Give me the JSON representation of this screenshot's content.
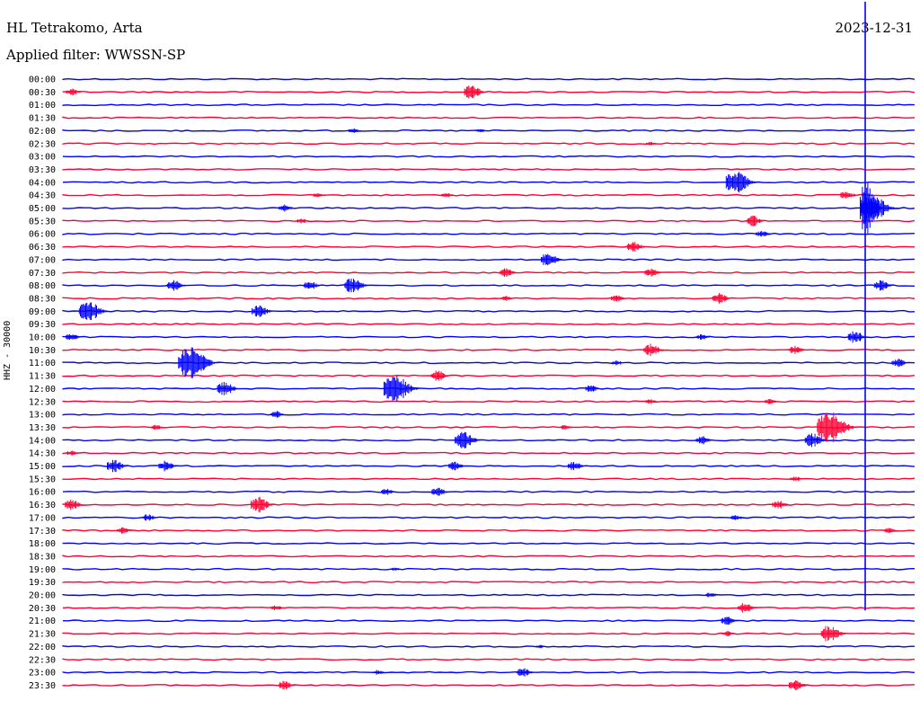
{
  "header": {
    "station": "HL Tetrakomo, Arta",
    "filter": "Applied filter: WWSSN-SP",
    "date": "2023-12-31",
    "channel": "HHZ - 30000"
  },
  "colors": {
    "trace_a": "#0000ff",
    "trace_b": "#ff0033"
  },
  "chart_data": {
    "type": "line",
    "title": "HL Tetrakomo, Arta",
    "subtitle": "Applied filter: WWSSN-SP",
    "ylabel": "HHZ - 30000",
    "tick_labels": [
      "00:00",
      "00:30",
      "01:00",
      "01:30",
      "02:00",
      "02:30",
      "03:00",
      "03:30",
      "04:00",
      "04:30",
      "05:00",
      "05:30",
      "06:00",
      "06:30",
      "07:00",
      "07:30",
      "08:00",
      "08:30",
      "09:00",
      "09:30",
      "10:00",
      "10:30",
      "11:00",
      "11:30",
      "12:00",
      "12:30",
      "13:00",
      "13:30",
      "14:00",
      "14:30",
      "15:00",
      "15:30",
      "16:00",
      "16:30",
      "17:00",
      "17:30",
      "18:00",
      "18:30",
      "19:00",
      "19:30",
      "20:00",
      "20:30",
      "21:00",
      "21:30",
      "22:00",
      "22:30",
      "23:00",
      "23:30"
    ],
    "line_colors": [
      "#0000ff",
      "#ff0033"
    ],
    "events": [
      {
        "row": 1,
        "pos": 0.01,
        "amp": 4
      },
      {
        "row": 1,
        "pos": 0.48,
        "amp": 8
      },
      {
        "row": 4,
        "pos": 0.34,
        "amp": 3
      },
      {
        "row": 4,
        "pos": 0.49,
        "amp": 2
      },
      {
        "row": 5,
        "pos": 0.69,
        "amp": 2
      },
      {
        "row": 8,
        "pos": 0.79,
        "amp": 13
      },
      {
        "row": 9,
        "pos": 0.3,
        "amp": 3
      },
      {
        "row": 9,
        "pos": 0.45,
        "amp": 3
      },
      {
        "row": 9,
        "pos": 0.92,
        "amp": 5
      },
      {
        "row": 10,
        "pos": 0.26,
        "amp": 4
      },
      {
        "row": 10,
        "pos": 0.95,
        "amp": 16
      },
      {
        "row": 11,
        "pos": 0.28,
        "amp": 3
      },
      {
        "row": 11,
        "pos": 0.81,
        "amp": 6
      },
      {
        "row": 12,
        "pos": 0.82,
        "amp": 4
      },
      {
        "row": 13,
        "pos": 0.67,
        "amp": 6
      },
      {
        "row": 14,
        "pos": 0.57,
        "amp": 8
      },
      {
        "row": 15,
        "pos": 0.52,
        "amp": 5
      },
      {
        "row": 15,
        "pos": 0.69,
        "amp": 5
      },
      {
        "row": 16,
        "pos": 0.13,
        "amp": 6
      },
      {
        "row": 16,
        "pos": 0.29,
        "amp": 5
      },
      {
        "row": 16,
        "pos": 0.34,
        "amp": 9
      },
      {
        "row": 16,
        "pos": 0.96,
        "amp": 6
      },
      {
        "row": 17,
        "pos": 0.52,
        "amp": 3
      },
      {
        "row": 17,
        "pos": 0.65,
        "amp": 4
      },
      {
        "row": 17,
        "pos": 0.77,
        "amp": 6
      },
      {
        "row": 18,
        "pos": 0.03,
        "amp": 12
      },
      {
        "row": 18,
        "pos": 0.23,
        "amp": 7
      },
      {
        "row": 20,
        "pos": 0.01,
        "amp": 4
      },
      {
        "row": 20,
        "pos": 0.75,
        "amp": 3
      },
      {
        "row": 20,
        "pos": 0.93,
        "amp": 7
      },
      {
        "row": 21,
        "pos": 0.69,
        "amp": 7
      },
      {
        "row": 21,
        "pos": 0.86,
        "amp": 5
      },
      {
        "row": 22,
        "pos": 0.15,
        "amp": 18
      },
      {
        "row": 22,
        "pos": 0.65,
        "amp": 3
      },
      {
        "row": 22,
        "pos": 0.98,
        "amp": 5
      },
      {
        "row": 23,
        "pos": 0.44,
        "amp": 6
      },
      {
        "row": 24,
        "pos": 0.19,
        "amp": 8
      },
      {
        "row": 24,
        "pos": 0.39,
        "amp": 16
      },
      {
        "row": 24,
        "pos": 0.62,
        "amp": 4
      },
      {
        "row": 25,
        "pos": 0.69,
        "amp": 3
      },
      {
        "row": 25,
        "pos": 0.83,
        "amp": 3
      },
      {
        "row": 26,
        "pos": 0.25,
        "amp": 4
      },
      {
        "row": 27,
        "pos": 0.11,
        "amp": 3
      },
      {
        "row": 27,
        "pos": 0.59,
        "amp": 3
      },
      {
        "row": 27,
        "pos": 0.9,
        "amp": 18
      },
      {
        "row": 28,
        "pos": 0.47,
        "amp": 10
      },
      {
        "row": 28,
        "pos": 0.75,
        "amp": 5
      },
      {
        "row": 28,
        "pos": 0.88,
        "amp": 8
      },
      {
        "row": 29,
        "pos": 0.01,
        "amp": 3
      },
      {
        "row": 30,
        "pos": 0.06,
        "amp": 7
      },
      {
        "row": 30,
        "pos": 0.12,
        "amp": 6
      },
      {
        "row": 30,
        "pos": 0.46,
        "amp": 5
      },
      {
        "row": 30,
        "pos": 0.6,
        "amp": 5
      },
      {
        "row": 31,
        "pos": 0.86,
        "amp": 3
      },
      {
        "row": 32,
        "pos": 0.38,
        "amp": 4
      },
      {
        "row": 32,
        "pos": 0.44,
        "amp": 5
      },
      {
        "row": 33,
        "pos": 0.01,
        "amp": 6
      },
      {
        "row": 33,
        "pos": 0.23,
        "amp": 9
      },
      {
        "row": 33,
        "pos": 0.84,
        "amp": 5
      },
      {
        "row": 34,
        "pos": 0.1,
        "amp": 4
      },
      {
        "row": 34,
        "pos": 0.79,
        "amp": 3
      },
      {
        "row": 35,
        "pos": 0.07,
        "amp": 4
      },
      {
        "row": 35,
        "pos": 0.97,
        "amp": 3
      },
      {
        "row": 38,
        "pos": 0.39,
        "amp": 2
      },
      {
        "row": 40,
        "pos": 0.76,
        "amp": 3
      },
      {
        "row": 41,
        "pos": 0.25,
        "amp": 3
      },
      {
        "row": 41,
        "pos": 0.8,
        "amp": 6
      },
      {
        "row": 42,
        "pos": 0.78,
        "amp": 5
      },
      {
        "row": 43,
        "pos": 0.78,
        "amp": 3
      },
      {
        "row": 43,
        "pos": 0.9,
        "amp": 10
      },
      {
        "row": 44,
        "pos": 0.56,
        "amp": 2
      },
      {
        "row": 46,
        "pos": 0.37,
        "amp": 3
      },
      {
        "row": 46,
        "pos": 0.54,
        "amp": 5
      },
      {
        "row": 47,
        "pos": 0.26,
        "amp": 5
      },
      {
        "row": 47,
        "pos": 0.86,
        "amp": 6
      }
    ],
    "glitch": {
      "pos": 0.942,
      "from_row": -6,
      "to_row": 41.2,
      "amp_row": 10,
      "amp": 32
    }
  }
}
